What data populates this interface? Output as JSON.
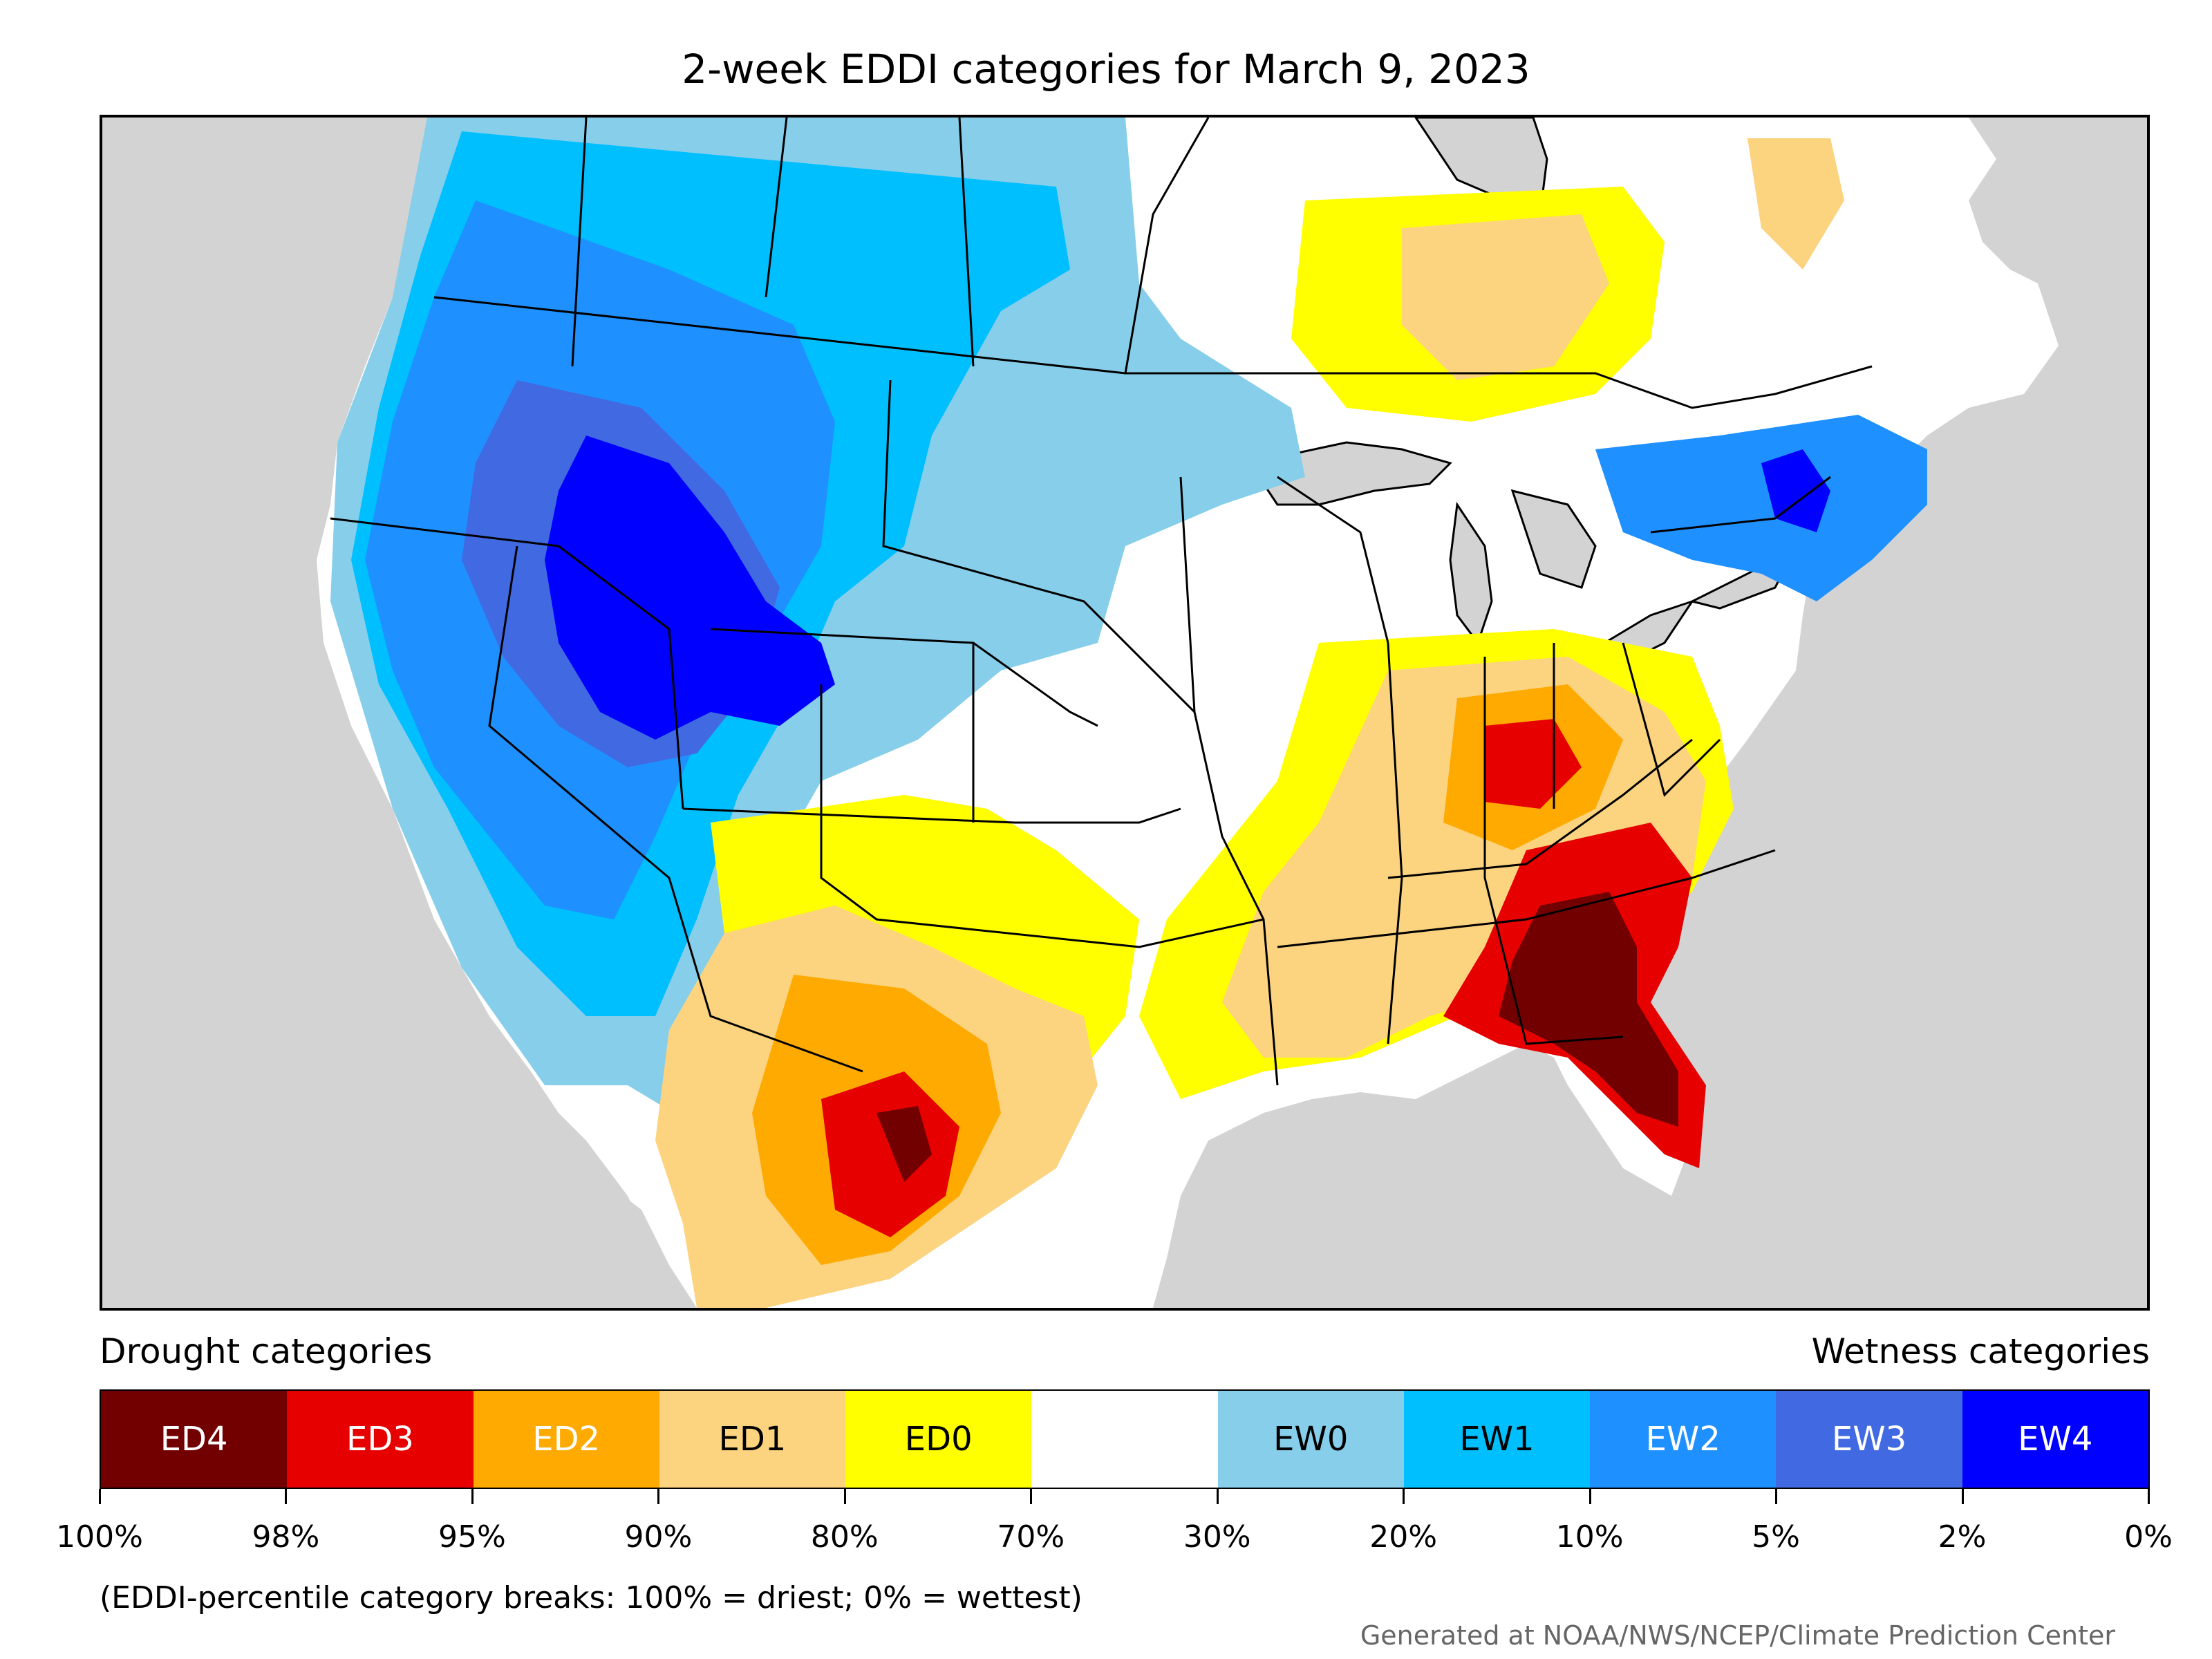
{
  "title": "2-week EDDI categories for March 9, 2023",
  "legend": {
    "drought_heading": "Drought categories",
    "wetness_heading": "Wetness categories",
    "categories": [
      {
        "label": "ED4",
        "color": "#730000",
        "text_color": "#ffffff"
      },
      {
        "label": "ED3",
        "color": "#e60000",
        "text_color": "#ffffff"
      },
      {
        "label": "ED2",
        "color": "#ffaa00",
        "text_color": "#ffffff"
      },
      {
        "label": "ED1",
        "color": "#fcd37f",
        "text_color": "#000000"
      },
      {
        "label": "ED0",
        "color": "#ffff00",
        "text_color": "#000000"
      },
      {
        "label": "",
        "color": "#ffffff",
        "text_color": "#000000"
      },
      {
        "label": "EW0",
        "color": "#87ceeb",
        "text_color": "#000000"
      },
      {
        "label": "EW1",
        "color": "#00bfff",
        "text_color": "#000000"
      },
      {
        "label": "EW2",
        "color": "#1e90ff",
        "text_color": "#ffffff"
      },
      {
        "label": "EW3",
        "color": "#4169e1",
        "text_color": "#ffffff"
      },
      {
        "label": "EW4",
        "color": "#0000ff",
        "text_color": "#ffffff"
      }
    ],
    "tick_labels": [
      "100%",
      "98%",
      "95%",
      "90%",
      "80%",
      "70%",
      "30%",
      "20%",
      "10%",
      "5%",
      "2%",
      "0%"
    ]
  },
  "footnote": "(EDDI-percentile category breaks: 100% = driest; 0% = wettest)",
  "credit": "Generated at NOAA/NWS/NCEP/Climate Prediction Center",
  "map_colors": {
    "background": "#d3d3d3",
    "land": "#ffffff",
    "borders": "#000000"
  }
}
